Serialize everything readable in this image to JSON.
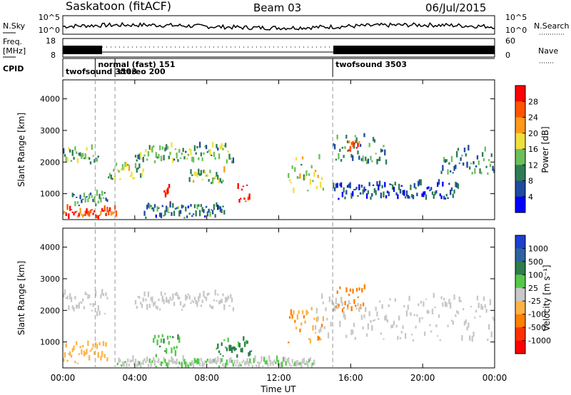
{
  "header": {
    "station": "Saskatoon (fitACF)",
    "beam": "Beam 03",
    "date": "06/Jul/2015"
  },
  "left_labels": {
    "nsky": "N.Sky",
    "freq_top": "Freq.",
    "freq_unit": "[MHz]",
    "cpid": "CPID"
  },
  "right_labels": {
    "nsearch": "N.Search",
    "nave": "Nave"
  },
  "nsky_ticks": [
    "10^5",
    "10^0"
  ],
  "nsearch_ticks": [
    "10^5",
    "10^0"
  ],
  "freq_ticks": [
    "18",
    "8"
  ],
  "nave_ticks": [
    "60",
    "0"
  ],
  "cpid_segments": [
    {
      "label": "twofsound 3503",
      "start_hour": 0.0
    },
    {
      "label": "normal (fast) 151",
      "start_hour": 1.8
    },
    {
      "label": "stereo 200",
      "start_hour": 2.9
    },
    {
      "label": "twofsound 3503",
      "start_hour": 15.0
    }
  ],
  "colors": {
    "power_scale": [
      "#0000ff",
      "#1e4aa0",
      "#2e7d55",
      "#6dbf5a",
      "#f0e03c",
      "#ff9a1a",
      "#ff5500",
      "#ff0000"
    ],
    "velocity_scale": [
      "#1e3fd0",
      "#2f63a0",
      "#2e7d4a",
      "#55c84a",
      "#c8c8c8",
      "#ffb347",
      "#ff7f00",
      "#ff3000",
      "#ff0000"
    ]
  },
  "chart_data": [
    {
      "type": "heatmap",
      "title": "",
      "ylabel": "Slant Range [km]",
      "xlabel": "",
      "x_range_hours": [
        0,
        24
      ],
      "ylim": [
        180,
        4600
      ],
      "y_ticks": [
        1000,
        2000,
        3000,
        4000
      ],
      "colorbar": {
        "label": "Power [dB]",
        "ticks": [
          "4",
          "8",
          "12",
          "16",
          "20",
          "24",
          "28"
        ],
        "range": [
          0,
          30
        ]
      },
      "regions": [
        {
          "t0": 0.0,
          "t1": 2.0,
          "r0": 1900,
          "r1": 2400,
          "level": 12
        },
        {
          "t0": 0.0,
          "t1": 3.0,
          "r0": 200,
          "r1": 500,
          "level": 26
        },
        {
          "t0": 0.5,
          "t1": 2.5,
          "r0": 600,
          "r1": 1000,
          "level": 10
        },
        {
          "t0": 2.5,
          "t1": 4.5,
          "r0": 1400,
          "r1": 1900,
          "level": 14
        },
        {
          "t0": 4.0,
          "t1": 9.5,
          "r0": 1950,
          "r1": 2500,
          "level": 12
        },
        {
          "t0": 5.6,
          "t1": 6.0,
          "r0": 700,
          "r1": 1200,
          "level": 28
        },
        {
          "t0": 4.5,
          "t1": 9.0,
          "r0": 200,
          "r1": 600,
          "level": 8
        },
        {
          "t0": 7.0,
          "t1": 9.0,
          "r0": 1300,
          "r1": 1700,
          "level": 14
        },
        {
          "t0": 9.7,
          "t1": 10.4,
          "r0": 700,
          "r1": 1300,
          "level": 28
        },
        {
          "t0": 12.5,
          "t1": 14.5,
          "r0": 1000,
          "r1": 2100,
          "level": 16
        },
        {
          "t0": 15.0,
          "t1": 18.0,
          "r0": 1900,
          "r1": 2800,
          "level": 10
        },
        {
          "t0": 15.8,
          "t1": 16.5,
          "r0": 2300,
          "r1": 2600,
          "level": 26
        },
        {
          "t0": 15.0,
          "t1": 22.0,
          "r0": 800,
          "r1": 1300,
          "level": 6
        },
        {
          "t0": 21.0,
          "t1": 24.0,
          "r0": 1600,
          "r1": 2400,
          "level": 10
        }
      ]
    },
    {
      "type": "heatmap",
      "title": "",
      "ylabel": "Slant Range [km]",
      "xlabel": "Time UT",
      "x_ticks": [
        "00:00",
        "04:00",
        "08:00",
        "12:00",
        "16:00",
        "20:00",
        "00:00"
      ],
      "x_range_hours": [
        0,
        24
      ],
      "ylim": [
        180,
        4600
      ],
      "y_ticks": [
        1000,
        2000,
        3000,
        4000
      ],
      "colorbar": {
        "label": "Velocity [m s⁻¹]",
        "ticks": [
          "1000",
          "500",
          "100",
          "25",
          "-25",
          "-100",
          "-500",
          "-1000"
        ],
        "range": [
          -1000,
          1000
        ]
      },
      "regions": [
        {
          "t0": 0.0,
          "t1": 2.5,
          "r0": 1800,
          "r1": 2500,
          "level": 0
        },
        {
          "t0": 0.0,
          "t1": 2.5,
          "r0": 300,
          "r1": 900,
          "level": -200
        },
        {
          "t0": 4.0,
          "t1": 9.5,
          "r0": 1950,
          "r1": 2500,
          "level": 0
        },
        {
          "t0": 5.0,
          "t1": 6.5,
          "r0": 500,
          "r1": 1200,
          "level": 300
        },
        {
          "t0": 8.5,
          "t1": 10.5,
          "r0": 500,
          "r1": 1100,
          "level": 400
        },
        {
          "t0": 12.5,
          "t1": 14.5,
          "r0": 900,
          "r1": 2000,
          "level": -300
        },
        {
          "t0": 15.0,
          "t1": 16.8,
          "r0": 1900,
          "r1": 2700,
          "level": -400
        },
        {
          "t0": 14.0,
          "t1": 24.0,
          "r0": 1000,
          "r1": 2400,
          "level": 0
        },
        {
          "t0": 3.0,
          "t1": 14.0,
          "r0": 180,
          "r1": 400,
          "level": 80
        }
      ]
    }
  ]
}
